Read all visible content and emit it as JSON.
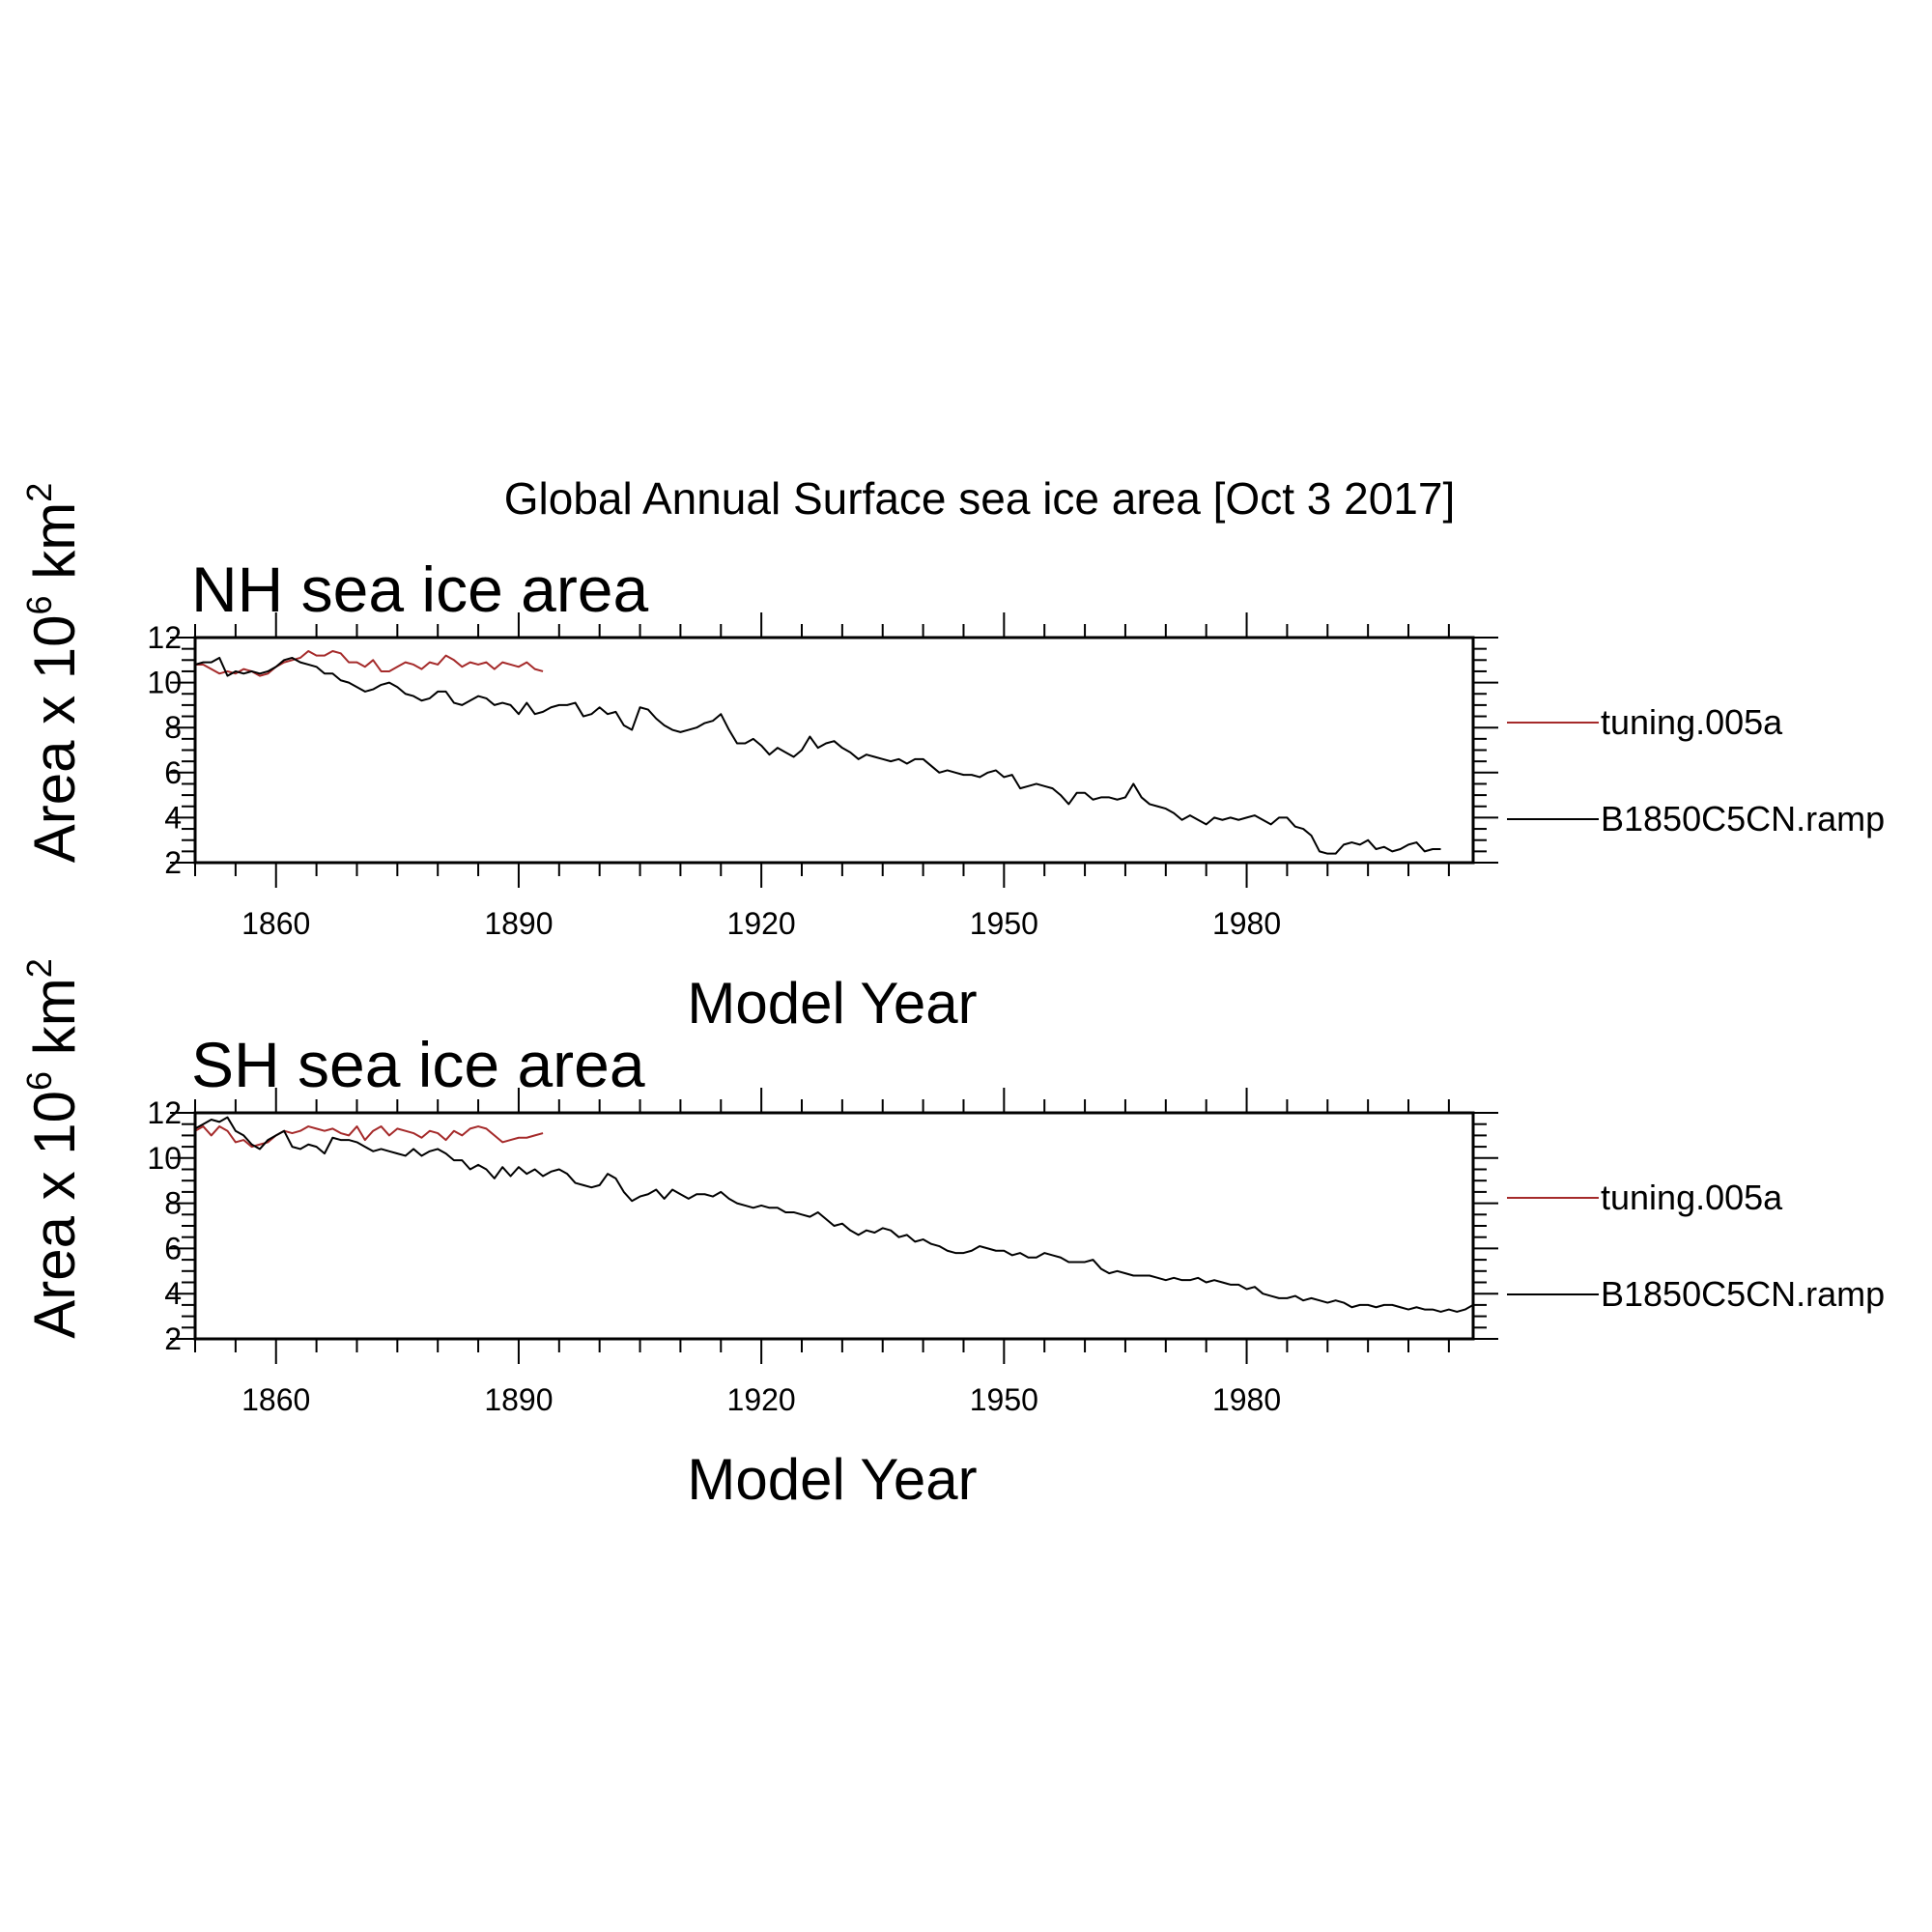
{
  "figure": {
    "title": "Global Annual Surface sea ice area [Oct  3 2017]",
    "colors": {
      "background": "#ffffff",
      "axes": "#000000"
    }
  },
  "chart_data": [
    {
      "type": "line",
      "title": "NH sea ice area",
      "xlabel": "Model Year",
      "ylabel_parts": {
        "pre": "Area x 10",
        "exp1": "6",
        "mid": " km",
        "exp2": "2"
      },
      "xlim": [
        1850,
        2008
      ],
      "ylim": [
        2,
        12
      ],
      "x_ticks": [
        1860,
        1890,
        1920,
        1950,
        1980
      ],
      "y_ticks": [
        2,
        4,
        6,
        8,
        10,
        12
      ],
      "grid": false,
      "legend_position": "right",
      "series": [
        {
          "name": "tuning.005a",
          "color": "#a52a2a",
          "x_start": 1850,
          "values": [
            10.8,
            10.8,
            10.6,
            10.4,
            10.5,
            10.4,
            10.6,
            10.5,
            10.3,
            10.4,
            10.7,
            10.9,
            11.0,
            11.1,
            11.4,
            11.2,
            11.2,
            11.4,
            11.3,
            10.9,
            10.9,
            10.7,
            11.0,
            10.5,
            10.5,
            10.7,
            10.9,
            10.8,
            10.6,
            10.9,
            10.8,
            11.2,
            11.0,
            10.7,
            10.9,
            10.8,
            10.9,
            10.6,
            10.9,
            10.8,
            10.7,
            10.9,
            10.6,
            10.5
          ]
        },
        {
          "name": "B1850C5CN.ramp",
          "color": "#000000",
          "x_start": 1850,
          "values": [
            10.8,
            10.9,
            10.9,
            11.1,
            10.3,
            10.5,
            10.4,
            10.5,
            10.4,
            10.5,
            10.7,
            11.0,
            11.1,
            10.9,
            10.8,
            10.7,
            10.4,
            10.4,
            10.1,
            10.0,
            9.8,
            9.6,
            9.7,
            9.9,
            10.0,
            9.8,
            9.5,
            9.4,
            9.2,
            9.3,
            9.6,
            9.6,
            9.1,
            9.0,
            9.2,
            9.4,
            9.3,
            9.0,
            9.1,
            9.0,
            8.6,
            9.1,
            8.6,
            8.7,
            8.9,
            9.0,
            9.0,
            9.1,
            8.5,
            8.6,
            8.9,
            8.6,
            8.7,
            8.1,
            7.9,
            8.9,
            8.8,
            8.4,
            8.1,
            7.9,
            7.8,
            7.9,
            8.0,
            8.2,
            8.3,
            8.6,
            7.9,
            7.3,
            7.3,
            7.5,
            7.2,
            6.8,
            7.1,
            6.9,
            6.7,
            7.0,
            7.6,
            7.1,
            7.3,
            7.4,
            7.1,
            6.9,
            6.6,
            6.8,
            6.7,
            6.6,
            6.5,
            6.6,
            6.4,
            6.6,
            6.6,
            6.3,
            6.0,
            6.1,
            6.0,
            5.9,
            5.9,
            5.8,
            6.0,
            6.1,
            5.8,
            5.9,
            5.3,
            5.4,
            5.5,
            5.4,
            5.3,
            5.0,
            4.6,
            5.1,
            5.1,
            4.8,
            4.9,
            4.9,
            4.8,
            4.9,
            5.5,
            4.9,
            4.6,
            4.5,
            4.4,
            4.2,
            3.9,
            4.1,
            3.9,
            3.7,
            4.0,
            3.9,
            4.0,
            3.9,
            4.0,
            4.1,
            3.9,
            3.7,
            4.0,
            4.0,
            3.6,
            3.5,
            3.2,
            2.5,
            2.4,
            2.4,
            2.8,
            2.9,
            2.8,
            3.0,
            2.6,
            2.7,
            2.5,
            2.6,
            2.8,
            2.9,
            2.5,
            2.6,
            2.6
          ]
        }
      ]
    },
    {
      "type": "line",
      "title": "SH sea ice area",
      "xlabel": "Model Year",
      "ylabel_parts": {
        "pre": "Area x 10",
        "exp1": "6",
        "mid": " km",
        "exp2": "2"
      },
      "xlim": [
        1850,
        2008
      ],
      "ylim": [
        2,
        12
      ],
      "x_ticks": [
        1860,
        1890,
        1920,
        1950,
        1980
      ],
      "y_ticks": [
        2,
        4,
        6,
        8,
        10,
        12
      ],
      "grid": false,
      "legend_position": "right",
      "series": [
        {
          "name": "tuning.005a",
          "color": "#a52a2a",
          "x_start": 1850,
          "values": [
            11.2,
            11.4,
            11.0,
            11.4,
            11.2,
            10.7,
            10.8,
            10.5,
            10.6,
            10.7,
            11.0,
            11.2,
            11.1,
            11.2,
            11.4,
            11.3,
            11.2,
            11.3,
            11.1,
            11.0,
            11.4,
            10.8,
            11.2,
            11.4,
            11.0,
            11.3,
            11.2,
            11.1,
            10.9,
            11.2,
            11.1,
            10.8,
            11.2,
            11.0,
            11.3,
            11.4,
            11.3,
            11.0,
            10.7,
            10.8,
            10.9,
            10.9,
            11.0,
            11.1
          ]
        },
        {
          "name": "B1850C5CN.ramp",
          "color": "#000000",
          "x_start": 1850,
          "values": [
            11.3,
            11.5,
            11.7,
            11.6,
            11.8,
            11.2,
            11.0,
            10.6,
            10.4,
            10.8,
            11.0,
            11.2,
            10.5,
            10.4,
            10.6,
            10.5,
            10.2,
            10.9,
            10.8,
            10.8,
            10.7,
            10.5,
            10.3,
            10.4,
            10.3,
            10.2,
            10.1,
            10.4,
            10.1,
            10.3,
            10.4,
            10.2,
            9.9,
            9.9,
            9.5,
            9.7,
            9.5,
            9.1,
            9.6,
            9.2,
            9.6,
            9.3,
            9.5,
            9.2,
            9.4,
            9.5,
            9.3,
            8.9,
            8.8,
            8.7,
            8.8,
            9.3,
            9.1,
            8.5,
            8.1,
            8.3,
            8.4,
            8.6,
            8.2,
            8.6,
            8.4,
            8.2,
            8.4,
            8.4,
            8.3,
            8.5,
            8.2,
            8.0,
            7.9,
            7.8,
            7.9,
            7.8,
            7.8,
            7.6,
            7.6,
            7.5,
            7.4,
            7.6,
            7.3,
            7.0,
            7.1,
            6.8,
            6.6,
            6.8,
            6.7,
            6.9,
            6.8,
            6.5,
            6.6,
            6.3,
            6.4,
            6.2,
            6.1,
            5.9,
            5.8,
            5.8,
            5.9,
            6.1,
            6.0,
            5.9,
            5.9,
            5.7,
            5.8,
            5.6,
            5.6,
            5.8,
            5.7,
            5.6,
            5.4,
            5.4,
            5.4,
            5.5,
            5.1,
            4.9,
            5.0,
            4.9,
            4.8,
            4.8,
            4.8,
            4.7,
            4.6,
            4.7,
            4.6,
            4.6,
            4.7,
            4.5,
            4.6,
            4.5,
            4.4,
            4.4,
            4.2,
            4.3,
            4.0,
            3.9,
            3.8,
            3.8,
            3.9,
            3.7,
            3.8,
            3.7,
            3.6,
            3.7,
            3.6,
            3.4,
            3.5,
            3.5,
            3.4,
            3.5,
            3.5,
            3.4,
            3.3,
            3.4,
            3.3,
            3.3,
            3.2,
            3.3,
            3.2,
            3.3,
            3.5
          ]
        }
      ]
    }
  ]
}
